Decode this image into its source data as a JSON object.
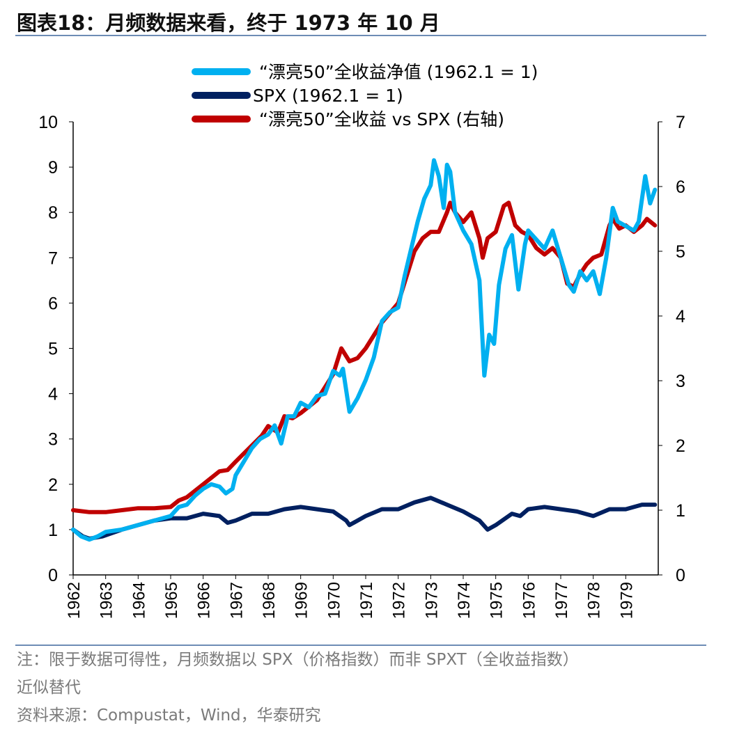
{
  "title": "图表18：月频数据来看，终于 1973 年 10 月",
  "notes": {
    "line1": "注：限于数据可得性，月频数据以 SPX（价格指数）而非 SPXT（全收益指数）",
    "line2": "近似替代",
    "source": "资料来源：Compustat，Wind，华泰研究"
  },
  "chart_data": {
    "type": "line",
    "xlim": [
      1962,
      1980
    ],
    "x_ticks": [
      "1962",
      "1963",
      "1964",
      "1965",
      "1966",
      "1967",
      "1968",
      "1969",
      "1970",
      "1971",
      "1972",
      "1973",
      "1974",
      "1975",
      "1976",
      "1977",
      "1978",
      "1979"
    ],
    "ylim_left": [
      0,
      10
    ],
    "y_ticks_left": [
      "0",
      "1",
      "2",
      "3",
      "4",
      "5",
      "6",
      "7",
      "8",
      "9",
      "10"
    ],
    "ylim_right": [
      0,
      7
    ],
    "y_ticks_right": [
      "0",
      "1",
      "2",
      "3",
      "4",
      "5",
      "6",
      "7"
    ],
    "legend_position": "top-center",
    "grid": false,
    "series": [
      {
        "name": "“漂亮50”全收益净值 (1962.1 = 1)",
        "axis": "left",
        "color": "#00b0f0",
        "x": [
          1962.0,
          1962.25,
          1962.5,
          1962.75,
          1963.0,
          1963.5,
          1964.0,
          1964.5,
          1965.0,
          1965.25,
          1965.5,
          1965.75,
          1966.0,
          1966.25,
          1966.5,
          1966.7,
          1966.9,
          1967.0,
          1967.25,
          1967.5,
          1967.75,
          1968.0,
          1968.2,
          1968.4,
          1968.6,
          1968.8,
          1969.0,
          1969.25,
          1969.5,
          1969.75,
          1970.0,
          1970.2,
          1970.3,
          1970.5,
          1970.75,
          1971.0,
          1971.25,
          1971.5,
          1971.75,
          1972.0,
          1972.2,
          1972.4,
          1972.6,
          1972.8,
          1973.0,
          1973.1,
          1973.25,
          1973.4,
          1973.5,
          1973.6,
          1973.75,
          1974.0,
          1974.25,
          1974.5,
          1974.65,
          1974.8,
          1974.95,
          1975.1,
          1975.3,
          1975.5,
          1975.7,
          1975.9,
          1976.0,
          1976.25,
          1976.5,
          1976.75,
          1977.0,
          1977.25,
          1977.4,
          1977.6,
          1977.8,
          1978.0,
          1978.2,
          1978.4,
          1978.6,
          1978.75,
          1979.0,
          1979.25,
          1979.4,
          1979.6,
          1979.75,
          1979.9
        ],
        "y": [
          1.0,
          0.85,
          0.78,
          0.85,
          0.95,
          1.0,
          1.1,
          1.2,
          1.3,
          1.5,
          1.55,
          1.75,
          1.9,
          2.0,
          1.95,
          1.8,
          1.9,
          2.2,
          2.5,
          2.8,
          3.0,
          3.1,
          3.3,
          2.9,
          3.5,
          3.5,
          3.8,
          3.7,
          3.95,
          4.0,
          4.5,
          4.4,
          4.55,
          3.6,
          3.9,
          4.3,
          4.8,
          5.6,
          5.8,
          5.9,
          6.6,
          7.2,
          7.8,
          8.3,
          8.6,
          9.15,
          8.8,
          8.1,
          9.05,
          8.9,
          8.0,
          7.6,
          7.3,
          6.5,
          4.4,
          5.3,
          5.1,
          6.4,
          7.2,
          7.5,
          6.3,
          7.3,
          7.6,
          7.4,
          7.2,
          7.6,
          7.0,
          6.4,
          6.25,
          6.7,
          6.5,
          6.7,
          6.2,
          7.0,
          8.1,
          7.8,
          7.7,
          7.6,
          7.8,
          8.8,
          8.2,
          8.5
        ]
      },
      {
        "name": "SPX (1962.1 = 1)",
        "axis": "left",
        "color": "#002060",
        "x": [
          1962.0,
          1962.3,
          1962.5,
          1962.9,
          1963.5,
          1964.0,
          1964.5,
          1965.0,
          1965.5,
          1966.0,
          1966.5,
          1966.75,
          1967.0,
          1967.5,
          1968.0,
          1968.5,
          1969.0,
          1969.5,
          1970.0,
          1970.4,
          1970.5,
          1971.0,
          1971.5,
          1972.0,
          1972.5,
          1973.0,
          1973.5,
          1974.0,
          1974.5,
          1974.75,
          1975.0,
          1975.5,
          1975.75,
          1976.0,
          1976.5,
          1977.0,
          1977.5,
          1978.0,
          1978.5,
          1979.0,
          1979.5,
          1979.9
        ],
        "y": [
          1.0,
          0.85,
          0.8,
          0.85,
          1.0,
          1.1,
          1.2,
          1.25,
          1.25,
          1.35,
          1.3,
          1.15,
          1.2,
          1.35,
          1.35,
          1.45,
          1.5,
          1.45,
          1.4,
          1.2,
          1.1,
          1.3,
          1.45,
          1.45,
          1.6,
          1.7,
          1.55,
          1.4,
          1.2,
          1.0,
          1.1,
          1.35,
          1.3,
          1.45,
          1.5,
          1.45,
          1.4,
          1.3,
          1.45,
          1.45,
          1.55,
          1.55
        ]
      },
      {
        "name": "“漂亮50”全收益 vs SPX (右轴)",
        "axis": "right",
        "color": "#c00000",
        "x": [
          1962.0,
          1962.5,
          1963.0,
          1963.5,
          1964.0,
          1964.5,
          1965.0,
          1965.25,
          1965.5,
          1966.0,
          1966.5,
          1966.75,
          1967.0,
          1967.5,
          1967.8,
          1968.0,
          1968.3,
          1968.5,
          1968.75,
          1969.0,
          1969.5,
          1970.0,
          1970.25,
          1970.5,
          1970.75,
          1971.0,
          1971.5,
          1972.0,
          1972.25,
          1972.5,
          1972.75,
          1973.0,
          1973.25,
          1973.5,
          1973.6,
          1973.75,
          1974.0,
          1974.25,
          1974.5,
          1974.6,
          1974.75,
          1975.0,
          1975.25,
          1975.4,
          1975.6,
          1975.8,
          1976.0,
          1976.25,
          1976.5,
          1976.75,
          1977.0,
          1977.2,
          1977.4,
          1977.6,
          1977.8,
          1978.0,
          1978.25,
          1978.5,
          1978.6,
          1978.8,
          1979.0,
          1979.25,
          1979.5,
          1979.65,
          1979.9
        ],
        "y": [
          1.0,
          0.97,
          0.97,
          1.0,
          1.03,
          1.03,
          1.05,
          1.15,
          1.2,
          1.4,
          1.6,
          1.62,
          1.75,
          2.0,
          2.15,
          2.3,
          2.2,
          2.45,
          2.42,
          2.5,
          2.7,
          3.1,
          3.5,
          3.3,
          3.35,
          3.5,
          3.9,
          4.2,
          4.6,
          5.0,
          5.2,
          5.3,
          5.3,
          5.6,
          5.75,
          5.6,
          5.45,
          5.6,
          5.2,
          4.9,
          5.2,
          5.3,
          5.7,
          5.75,
          5.4,
          5.3,
          5.25,
          5.05,
          4.95,
          5.05,
          4.9,
          4.5,
          4.45,
          4.65,
          4.8,
          4.9,
          4.95,
          5.4,
          5.5,
          5.35,
          5.4,
          5.3,
          5.4,
          5.5,
          5.4
        ]
      }
    ]
  }
}
